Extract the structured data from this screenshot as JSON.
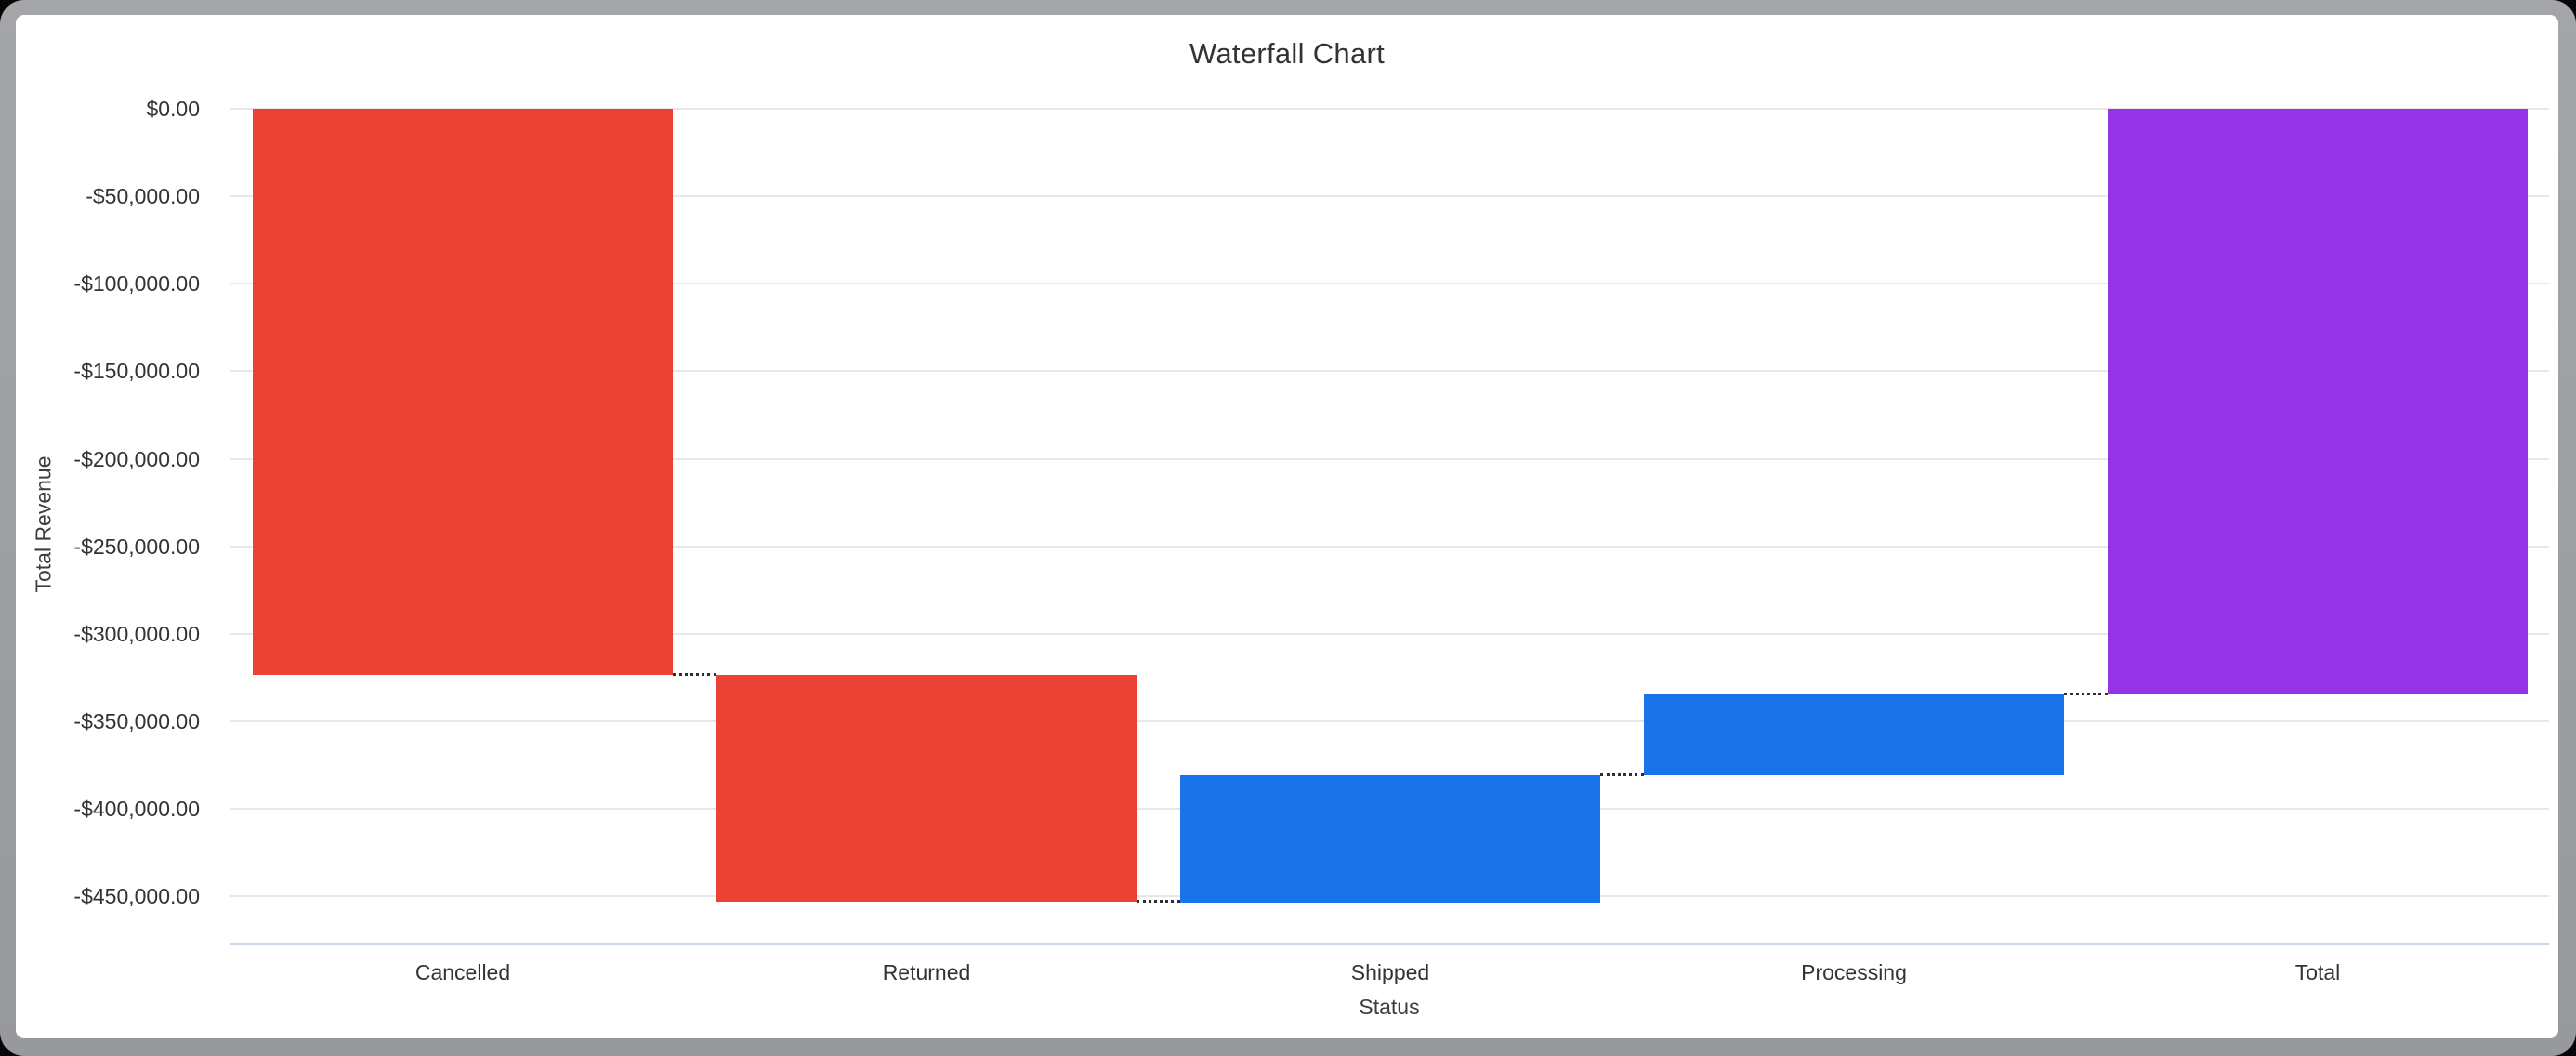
{
  "window": {
    "background_color": "#060606",
    "frame_color": "#9ea1a4",
    "card_color": "#ffffff"
  },
  "chart_data": {
    "type": "bar",
    "subtype": "waterfall",
    "title": "Waterfall Chart",
    "xlabel": "Status",
    "ylabel": "Total Revenue",
    "categories": [
      "Cancelled",
      "Returned",
      "Shipped",
      "Processing",
      "Total"
    ],
    "series": [
      {
        "name": "Total Revenue",
        "points": [
          {
            "category": "Cancelled",
            "delta": -323700,
            "start": 0,
            "end": -323700,
            "role": "decrease"
          },
          {
            "category": "Returned",
            "delta": -129600,
            "start": -323700,
            "end": -453300,
            "role": "decrease"
          },
          {
            "category": "Shipped",
            "delta": 72700,
            "start": -453300,
            "end": -380600,
            "role": "increase"
          },
          {
            "category": "Processing",
            "delta": 46100,
            "start": -380600,
            "end": -334500,
            "role": "increase"
          },
          {
            "category": "Total",
            "delta": -334500,
            "start": 0,
            "end": -334500,
            "role": "total"
          }
        ]
      }
    ],
    "y_ticks": [
      {
        "value": 0,
        "label": "$0.00"
      },
      {
        "value": -50000,
        "label": "-$50,000.00"
      },
      {
        "value": -100000,
        "label": "-$100,000.00"
      },
      {
        "value": -150000,
        "label": "-$150,000.00"
      },
      {
        "value": -200000,
        "label": "-$200,000.00"
      },
      {
        "value": -250000,
        "label": "-$250,000.00"
      },
      {
        "value": -300000,
        "label": "-$300,000.00"
      },
      {
        "value": -350000,
        "label": "-$350,000.00"
      },
      {
        "value": -400000,
        "label": "-$400,000.00"
      },
      {
        "value": -450000,
        "label": "-$450,000.00"
      }
    ],
    "ylim": [
      -477000,
      0
    ],
    "grid": true,
    "legend": "none",
    "connector_style": "dotted",
    "colors": {
      "decrease": "#ea4335",
      "increase": "#1a73e8",
      "total": "#9334e6"
    },
    "styles": {
      "grid_color": "#e7e7e7",
      "x_axis_line_color": "#ccd6eb",
      "connector_color": "#2e2e2e",
      "text_color": "#333333"
    }
  }
}
